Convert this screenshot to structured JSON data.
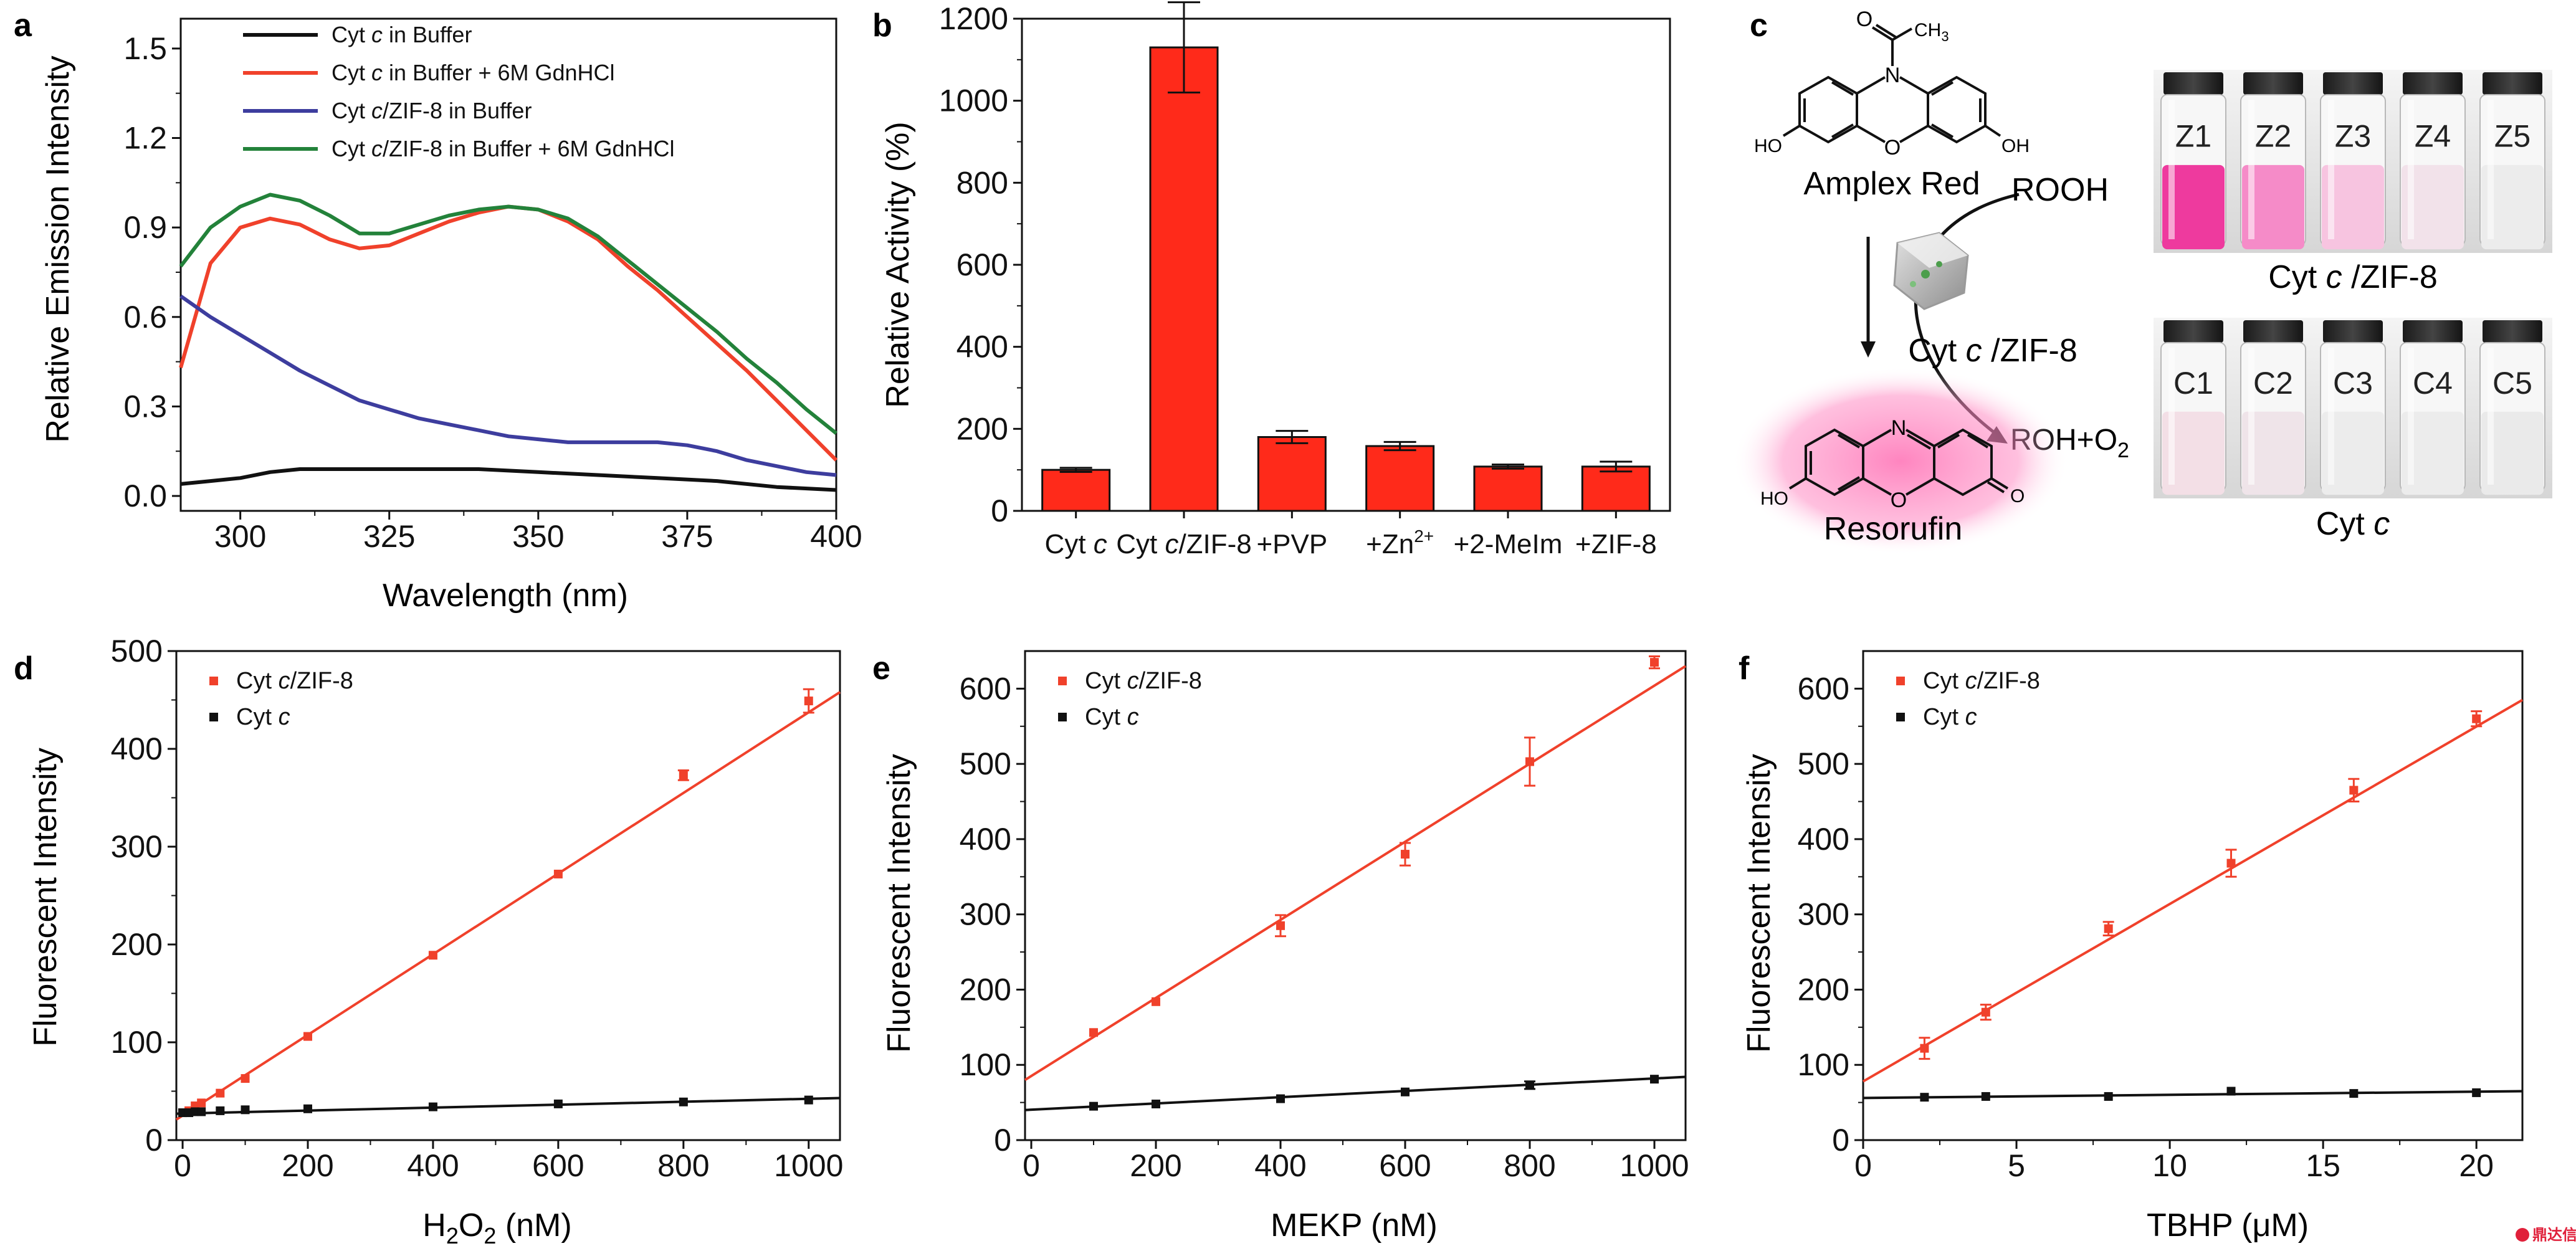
{
  "colors": {
    "black": "#111111",
    "red": "#f0412b",
    "blue": "#3d3d9e",
    "green": "#23823a",
    "bar_fill": "#ff2a1a",
    "pink_glow": "#ff6fb4"
  },
  "panels": {
    "a": "a",
    "b": "b",
    "c": "c",
    "d": "d",
    "e": "e",
    "f": "f"
  },
  "watermark": "鼎达信",
  "chart_data": [
    {
      "id": "a",
      "type": "line",
      "xlabel": "Wavelength (nm)",
      "ylabel": "Relative Emission Intensity",
      "xlim": [
        290,
        400
      ],
      "ylim": [
        -0.05,
        1.6
      ],
      "xticks": [
        300,
        325,
        350,
        375,
        400
      ],
      "yticks": [
        0.0,
        0.3,
        0.6,
        0.9,
        1.2,
        1.5
      ],
      "ytick_labels": [
        "0.0",
        "0.3",
        "0.6",
        "0.9",
        "1.2",
        "1.5"
      ],
      "legend_position": "top-left",
      "series": [
        {
          "name": "Cyt c in Buffer",
          "color": "#111111",
          "x": [
            290,
            295,
            300,
            305,
            310,
            320,
            330,
            340,
            350,
            360,
            370,
            380,
            390,
            400
          ],
          "y": [
            0.04,
            0.05,
            0.06,
            0.08,
            0.09,
            0.09,
            0.09,
            0.09,
            0.08,
            0.07,
            0.06,
            0.05,
            0.03,
            0.02
          ]
        },
        {
          "name": "Cyt c in Buffer +  6M GdnHCl",
          "color": "#f0412b",
          "x": [
            290,
            295,
            300,
            305,
            310,
            315,
            320,
            325,
            330,
            335,
            340,
            345,
            350,
            355,
            360,
            365,
            370,
            375,
            380,
            385,
            390,
            395,
            400
          ],
          "y": [
            0.43,
            0.78,
            0.9,
            0.93,
            0.91,
            0.86,
            0.83,
            0.84,
            0.88,
            0.92,
            0.95,
            0.97,
            0.96,
            0.92,
            0.86,
            0.77,
            0.69,
            0.6,
            0.51,
            0.42,
            0.32,
            0.22,
            0.12
          ]
        },
        {
          "name": "Cyt c/ZIF-8 in Buffer",
          "color": "#3d3d9e",
          "x": [
            290,
            295,
            300,
            305,
            310,
            315,
            320,
            325,
            330,
            335,
            340,
            345,
            350,
            355,
            360,
            365,
            370,
            375,
            380,
            385,
            390,
            395,
            400
          ],
          "y": [
            0.67,
            0.6,
            0.54,
            0.48,
            0.42,
            0.37,
            0.32,
            0.29,
            0.26,
            0.24,
            0.22,
            0.2,
            0.19,
            0.18,
            0.18,
            0.18,
            0.18,
            0.17,
            0.15,
            0.12,
            0.1,
            0.08,
            0.07
          ]
        },
        {
          "name": "Cyt c/ZIF-8 in Buffer + 6M GdnHCl",
          "color": "#23823a",
          "x": [
            290,
            295,
            300,
            305,
            310,
            315,
            320,
            325,
            330,
            335,
            340,
            345,
            350,
            355,
            360,
            365,
            370,
            375,
            380,
            385,
            390,
            395,
            400
          ],
          "y": [
            0.77,
            0.9,
            0.97,
            1.01,
            0.99,
            0.94,
            0.88,
            0.88,
            0.91,
            0.94,
            0.96,
            0.97,
            0.96,
            0.93,
            0.87,
            0.79,
            0.71,
            0.63,
            0.55,
            0.46,
            0.38,
            0.29,
            0.21
          ]
        }
      ]
    },
    {
      "id": "b",
      "type": "bar",
      "xlabel": "",
      "ylabel": "Relative Activity (%)",
      "ylim": [
        0,
        1200
      ],
      "yticks": [
        0,
        200,
        400,
        600,
        800,
        1000,
        1200
      ],
      "categories": [
        {
          "pre": "Cyt ",
          "it": "c",
          "post": "",
          "sup": ""
        },
        {
          "pre": "Cyt ",
          "it": "c",
          "post": "/ZIF-8",
          "sup": ""
        },
        {
          "pre": "+PVP",
          "it": "",
          "post": "",
          "sup": ""
        },
        {
          "pre": "+Zn",
          "it": "",
          "post": "",
          "sup": "2+"
        },
        {
          "pre": "+2-MeIm",
          "it": "",
          "post": "",
          "sup": ""
        },
        {
          "pre": "+ZIF-8",
          "it": "",
          "post": "",
          "sup": ""
        }
      ],
      "values": [
        100,
        1130,
        180,
        158,
        108,
        108
      ],
      "errors": [
        5,
        110,
        15,
        10,
        5,
        12
      ]
    },
    {
      "id": "d",
      "type": "scatter",
      "xlabel_main": "H",
      "xlabel_sub1": "2",
      "xlabel_mid": "O",
      "xlabel_sub2": "2",
      "xlabel_end": " (nM)",
      "ylabel": "Fluorescent Intensity",
      "xlim": [
        -10,
        1050
      ],
      "ylim": [
        0,
        500
      ],
      "xticks": [
        0,
        200,
        400,
        600,
        800,
        1000
      ],
      "yticks": [
        0,
        100,
        200,
        300,
        400,
        500
      ],
      "legend_position": "top-left",
      "series": [
        {
          "name_pre": "Cyt ",
          "name_it": "c",
          "name_post": "/ZIF-8",
          "color": "#f0412b",
          "x": [
            0,
            10,
            20,
            30,
            60,
            100,
            200,
            400,
            600,
            800,
            1000
          ],
          "y": [
            28,
            30,
            35,
            38,
            48,
            63,
            106,
            189,
            272,
            373,
            449
          ],
          "err": [
            0,
            0,
            0,
            0,
            0,
            0,
            0,
            0,
            0,
            5,
            12
          ],
          "fit": {
            "x0": -10,
            "y0": 21,
            "x1": 1050,
            "y1": 458
          }
        },
        {
          "name_pre": "Cyt ",
          "name_it": "c",
          "name_post": "",
          "color": "#111111",
          "x": [
            0,
            10,
            20,
            30,
            60,
            100,
            200,
            400,
            600,
            800,
            1000
          ],
          "y": [
            28,
            28,
            29,
            29,
            30,
            31,
            32,
            34,
            37,
            39,
            41
          ],
          "err": [
            0,
            0,
            0,
            0,
            0,
            0,
            0,
            0,
            0,
            0,
            0
          ],
          "fit": {
            "x0": -10,
            "y0": 27,
            "x1": 1050,
            "y1": 43
          }
        }
      ]
    },
    {
      "id": "e",
      "type": "scatter",
      "xlabel": "MEKP (nM)",
      "ylabel": "Fluorescent Intensity",
      "xlim": [
        -10,
        1050
      ],
      "ylim": [
        0,
        650
      ],
      "xticks": [
        0,
        200,
        400,
        600,
        800,
        1000
      ],
      "yticks": [
        0,
        100,
        200,
        300,
        400,
        500,
        600
      ],
      "legend_position": "top-left",
      "series": [
        {
          "name_pre": "Cyt ",
          "name_it": "c",
          "name_post": "/ZIF-8",
          "color": "#f0412b",
          "x": [
            100,
            200,
            400,
            600,
            800,
            1000
          ],
          "y": [
            143,
            184,
            285,
            380,
            503,
            635
          ],
          "err": [
            0,
            0,
            14,
            15,
            32,
            8
          ],
          "fit": {
            "x0": -10,
            "y0": 80,
            "x1": 1050,
            "y1": 630
          }
        },
        {
          "name_pre": "Cyt ",
          "name_it": "c",
          "name_post": "",
          "color": "#111111",
          "x": [
            100,
            200,
            400,
            600,
            800,
            1000
          ],
          "y": [
            45,
            48,
            55,
            64,
            73,
            81
          ],
          "err": [
            0,
            0,
            0,
            0,
            5,
            0
          ],
          "fit": {
            "x0": -10,
            "y0": 40,
            "x1": 1050,
            "y1": 84
          }
        }
      ]
    },
    {
      "id": "f",
      "type": "scatter",
      "xlabel_pre": "TBHP (",
      "xlabel_mu": "μ",
      "xlabel_post": "M)",
      "ylabel": "Fluorescent Intensity",
      "xlim": [
        0,
        21.5
      ],
      "ylim": [
        0,
        650
      ],
      "xticks": [
        0,
        5,
        10,
        15,
        20
      ],
      "yticks": [
        0,
        100,
        200,
        300,
        400,
        500,
        600
      ],
      "legend_position": "top-left",
      "series": [
        {
          "name_pre": "Cyt ",
          "name_it": "c",
          "name_post": "/ZIF-8",
          "color": "#f0412b",
          "x": [
            2,
            4,
            8,
            12,
            16,
            20
          ],
          "y": [
            122,
            170,
            281,
            368,
            465,
            560
          ],
          "err": [
            14,
            10,
            9,
            18,
            15,
            10
          ],
          "fit": {
            "x0": 0,
            "y0": 78,
            "x1": 21.5,
            "y1": 585
          }
        },
        {
          "name_pre": "Cyt ",
          "name_it": "c",
          "name_post": "",
          "color": "#111111",
          "x": [
            2,
            4,
            8,
            12,
            16,
            20
          ],
          "y": [
            57,
            58,
            58,
            65,
            62,
            63
          ],
          "err": [
            0,
            0,
            0,
            0,
            0,
            0
          ],
          "fit": {
            "x0": 0,
            "y0": 56,
            "x1": 21.5,
            "y1": 65
          }
        }
      ]
    }
  ],
  "scheme_c": {
    "amplex_label": "Amplex Red",
    "rooh_label": "ROOH",
    "catalyst_pre": "Cyt ",
    "catalyst_it": "c",
    "catalyst_post": " /ZIF-8",
    "product_pre": "ROH+O",
    "product_sub": "2",
    "resorufin_label": "Resorufin",
    "atom_ho": "HO",
    "atom_oh": "OH",
    "atom_n": "N",
    "atom_o": "O",
    "atom_o_carbonyl": "O",
    "atom_ch3": "CH",
    "atom_ch3_sub": "3",
    "atom_ho2": "HO",
    "atom_n2": "N",
    "atom_o_ring2": "O",
    "atom_o_keto": "O",
    "vials_z": [
      "Z1",
      "Z2",
      "Z3",
      "Z4",
      "Z5"
    ],
    "vials_z_colors": [
      "#ee3a9e",
      "#f58bc8",
      "#f7c4e0",
      "#f2e2ea",
      "#ececec"
    ],
    "vials_z_caption_pre": "Cyt ",
    "vials_z_caption_it": "c",
    "vials_z_caption_post": " /ZIF-8",
    "vials_c": [
      "C1",
      "C2",
      "C3",
      "C4",
      "C5"
    ],
    "vials_c_colors": [
      "#f3dfe6",
      "#efe4e9",
      "#ececec",
      "#ececec",
      "#eaeaea"
    ],
    "vials_c_caption_pre": "Cyt ",
    "vials_c_caption_it": "c"
  }
}
